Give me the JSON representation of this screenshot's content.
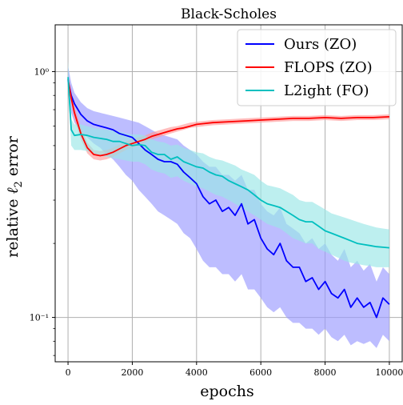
{
  "chart_data": {
    "type": "line",
    "title": "Black-Scholes",
    "xlabel": "epochs",
    "ylabel_prefix": "relative ",
    "ylabel_symbol": "ℓ",
    "ylabel_sub": "2",
    "ylabel_suffix": " error",
    "yscale": "log",
    "xlim": [
      -400,
      10400
    ],
    "ylim": [
      0.066,
      1.55
    ],
    "grid": true,
    "legend_position": "top-right",
    "x_ticks": [
      0,
      2000,
      4000,
      6000,
      8000,
      10000
    ],
    "x_tick_labels": [
      "0",
      "2000",
      "4000",
      "6000",
      "8000",
      "10000"
    ],
    "y_ticks": [
      0.1,
      1.0
    ],
    "y_tick_labels": [
      "10⁻¹",
      "10⁰"
    ],
    "series": [
      {
        "name": "Ours (ZO)",
        "color": "#0000ff",
        "band_color": "#9999ff",
        "x": [
          0,
          100,
          200,
          400,
          600,
          800,
          1000,
          1200,
          1400,
          1600,
          1800,
          2000,
          2200,
          2400,
          2600,
          2800,
          3000,
          3200,
          3400,
          3600,
          3800,
          4000,
          4200,
          4400,
          4600,
          4800,
          5000,
          5200,
          5400,
          5600,
          5800,
          6000,
          6200,
          6400,
          6600,
          6800,
          7000,
          7200,
          7400,
          7600,
          7800,
          8000,
          8200,
          8400,
          8600,
          8800,
          9000,
          9200,
          9400,
          9600,
          9800,
          10000
        ],
        "values": [
          0.92,
          0.8,
          0.74,
          0.67,
          0.63,
          0.61,
          0.6,
          0.59,
          0.58,
          0.56,
          0.55,
          0.54,
          0.51,
          0.48,
          0.46,
          0.44,
          0.43,
          0.43,
          0.42,
          0.39,
          0.37,
          0.35,
          0.31,
          0.29,
          0.3,
          0.27,
          0.28,
          0.26,
          0.29,
          0.24,
          0.25,
          0.21,
          0.19,
          0.18,
          0.2,
          0.17,
          0.16,
          0.16,
          0.14,
          0.145,
          0.13,
          0.14,
          0.125,
          0.12,
          0.13,
          0.11,
          0.12,
          0.11,
          0.115,
          0.1,
          0.12,
          0.113
        ],
        "lower": [
          0.85,
          0.68,
          0.62,
          0.57,
          0.54,
          0.51,
          0.49,
          0.46,
          0.44,
          0.41,
          0.38,
          0.36,
          0.33,
          0.31,
          0.29,
          0.27,
          0.26,
          0.25,
          0.24,
          0.22,
          0.21,
          0.19,
          0.17,
          0.16,
          0.16,
          0.15,
          0.15,
          0.14,
          0.15,
          0.13,
          0.13,
          0.12,
          0.11,
          0.105,
          0.11,
          0.1,
          0.095,
          0.095,
          0.09,
          0.09,
          0.085,
          0.09,
          0.083,
          0.08,
          0.085,
          0.077,
          0.08,
          0.078,
          0.08,
          0.075,
          0.085,
          0.08
        ],
        "upper": [
          1.05,
          0.9,
          0.82,
          0.75,
          0.71,
          0.69,
          0.68,
          0.67,
          0.66,
          0.65,
          0.64,
          0.63,
          0.62,
          0.6,
          0.58,
          0.56,
          0.55,
          0.54,
          0.53,
          0.5,
          0.48,
          0.46,
          0.43,
          0.41,
          0.41,
          0.38,
          0.38,
          0.36,
          0.38,
          0.33,
          0.33,
          0.29,
          0.27,
          0.26,
          0.28,
          0.24,
          0.23,
          0.22,
          0.2,
          0.21,
          0.19,
          0.2,
          0.18,
          0.17,
          0.19,
          0.16,
          0.17,
          0.155,
          0.165,
          0.14,
          0.16,
          0.15
        ]
      },
      {
        "name": "FLOPS (ZO)",
        "color": "#ff0000",
        "band_color": "#ff9a9a",
        "x": [
          0,
          100,
          200,
          400,
          600,
          800,
          1000,
          1200,
          1400,
          1600,
          1800,
          2000,
          2200,
          2400,
          2600,
          2800,
          3000,
          3200,
          3400,
          3600,
          3800,
          4000,
          4500,
          5000,
          5500,
          6000,
          6500,
          7000,
          7500,
          8000,
          8500,
          9000,
          9500,
          10000
        ],
        "values": [
          0.93,
          0.78,
          0.68,
          0.56,
          0.49,
          0.46,
          0.455,
          0.46,
          0.47,
          0.485,
          0.5,
          0.51,
          0.52,
          0.53,
          0.545,
          0.555,
          0.565,
          0.575,
          0.585,
          0.59,
          0.6,
          0.61,
          0.62,
          0.625,
          0.63,
          0.635,
          0.64,
          0.645,
          0.645,
          0.65,
          0.645,
          0.65,
          0.65,
          0.655
        ],
        "lower": [
          0.9,
          0.74,
          0.64,
          0.53,
          0.465,
          0.44,
          0.435,
          0.44,
          0.45,
          0.465,
          0.48,
          0.49,
          0.5,
          0.515,
          0.53,
          0.54,
          0.55,
          0.56,
          0.57,
          0.58,
          0.59,
          0.595,
          0.605,
          0.61,
          0.615,
          0.62,
          0.625,
          0.63,
          0.63,
          0.635,
          0.63,
          0.635,
          0.635,
          0.64
        ],
        "upper": [
          0.96,
          0.82,
          0.72,
          0.59,
          0.515,
          0.48,
          0.475,
          0.48,
          0.49,
          0.505,
          0.52,
          0.53,
          0.54,
          0.55,
          0.565,
          0.575,
          0.585,
          0.595,
          0.6,
          0.61,
          0.62,
          0.625,
          0.635,
          0.64,
          0.645,
          0.65,
          0.655,
          0.66,
          0.66,
          0.665,
          0.66,
          0.665,
          0.665,
          0.67
        ]
      },
      {
        "name": "L2ight (FO)",
        "color": "#00bfbf",
        "band_color": "#99e6e6",
        "x": [
          0,
          100,
          200,
          400,
          600,
          800,
          1000,
          1200,
          1400,
          1600,
          1800,
          2000,
          2200,
          2400,
          2600,
          2800,
          3000,
          3200,
          3400,
          3600,
          3800,
          4000,
          4200,
          4400,
          4600,
          4800,
          5000,
          5200,
          5400,
          5600,
          5800,
          6000,
          6200,
          6400,
          6600,
          6800,
          7000,
          7200,
          7400,
          7600,
          7800,
          8000,
          8200,
          8400,
          8600,
          8800,
          9000,
          9200,
          9400,
          9600,
          9800,
          10000
        ],
        "values": [
          0.95,
          0.58,
          0.55,
          0.555,
          0.55,
          0.54,
          0.535,
          0.53,
          0.52,
          0.52,
          0.51,
          0.5,
          0.505,
          0.5,
          0.47,
          0.46,
          0.46,
          0.44,
          0.45,
          0.43,
          0.42,
          0.41,
          0.405,
          0.39,
          0.38,
          0.375,
          0.36,
          0.35,
          0.34,
          0.33,
          0.315,
          0.3,
          0.29,
          0.285,
          0.28,
          0.27,
          0.26,
          0.25,
          0.245,
          0.245,
          0.235,
          0.225,
          0.22,
          0.215,
          0.21,
          0.205,
          0.2,
          0.198,
          0.196,
          0.194,
          0.193,
          0.192
        ],
        "lower": [
          0.88,
          0.5,
          0.48,
          0.48,
          0.475,
          0.465,
          0.455,
          0.45,
          0.445,
          0.44,
          0.435,
          0.43,
          0.43,
          0.42,
          0.4,
          0.39,
          0.385,
          0.37,
          0.375,
          0.36,
          0.35,
          0.34,
          0.335,
          0.325,
          0.315,
          0.31,
          0.3,
          0.29,
          0.28,
          0.27,
          0.26,
          0.25,
          0.24,
          0.235,
          0.23,
          0.22,
          0.21,
          0.205,
          0.2,
          0.2,
          0.19,
          0.185,
          0.18,
          0.175,
          0.17,
          0.167,
          0.165,
          0.163,
          0.162,
          0.16,
          0.16,
          0.16
        ],
        "upper": [
          1.1,
          0.64,
          0.61,
          0.61,
          0.6,
          0.59,
          0.585,
          0.58,
          0.575,
          0.57,
          0.56,
          0.555,
          0.555,
          0.55,
          0.53,
          0.52,
          0.515,
          0.5,
          0.505,
          0.49,
          0.48,
          0.47,
          0.465,
          0.45,
          0.44,
          0.435,
          0.425,
          0.415,
          0.4,
          0.39,
          0.38,
          0.36,
          0.345,
          0.34,
          0.335,
          0.325,
          0.315,
          0.3,
          0.295,
          0.295,
          0.285,
          0.275,
          0.265,
          0.26,
          0.255,
          0.25,
          0.245,
          0.24,
          0.236,
          0.232,
          0.23,
          0.228
        ]
      }
    ]
  }
}
